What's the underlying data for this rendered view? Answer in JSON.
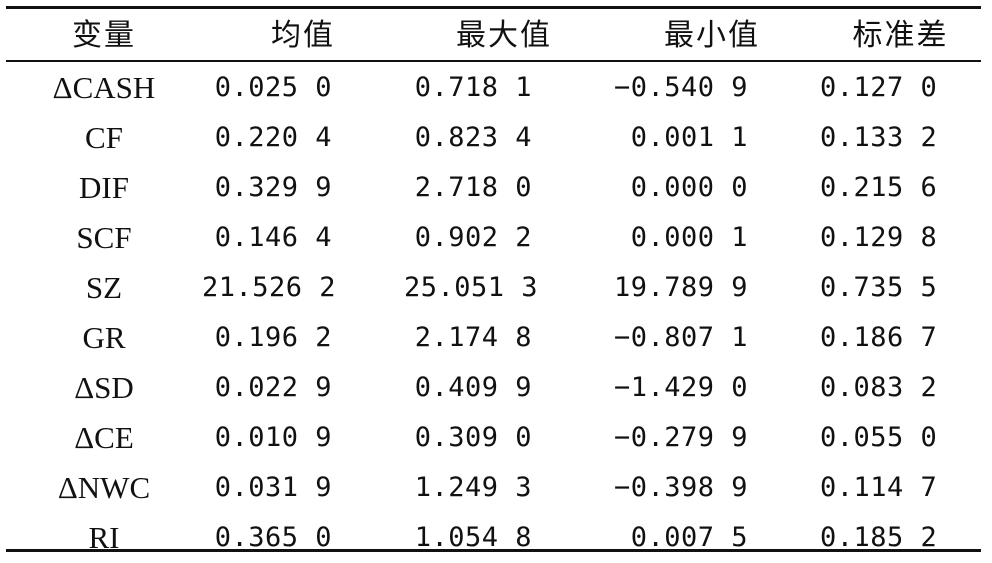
{
  "table": {
    "headers": [
      "变量",
      "均值",
      "最大值",
      "最小值",
      "标准差"
    ],
    "rows": [
      {
        "var": "ΔCASH",
        "mean": "0.025 0",
        "max": "0.718 1",
        "min": "−0.540 9",
        "sd": "0.127 0"
      },
      {
        "var": "CF",
        "mean": "0.220 4",
        "max": "0.823 4",
        "min": "0.001 1",
        "sd": "0.133 2"
      },
      {
        "var": "DIF",
        "mean": "0.329 9",
        "max": "2.718 0",
        "min": "0.000 0",
        "sd": "0.215 6"
      },
      {
        "var": "SCF",
        "mean": "0.146 4",
        "max": "0.902 2",
        "min": "0.000 1",
        "sd": "0.129 8"
      },
      {
        "var": "SZ",
        "mean": "21.526 2",
        "max": "25.051 3",
        "min": "19.789 9",
        "sd": "0.735 5"
      },
      {
        "var": "GR",
        "mean": "0.196 2",
        "max": "2.174 8",
        "min": "−0.807 1",
        "sd": "0.186 7"
      },
      {
        "var": "ΔSD",
        "mean": "0.022 9",
        "max": "0.409 9",
        "min": "−1.429 0",
        "sd": "0.083 2"
      },
      {
        "var": "ΔCE",
        "mean": "0.010 9",
        "max": "0.309 0",
        "min": "−0.279 9",
        "sd": "0.055 0"
      },
      {
        "var": "ΔNWC",
        "mean": "0.031 9",
        "max": "1.249 3",
        "min": "−0.398 9",
        "sd": "0.114 7"
      },
      {
        "var": "RI",
        "mean": "0.365 0",
        "max": "1.054 8",
        "min": "0.007 5",
        "sd": "0.185 2"
      }
    ]
  }
}
